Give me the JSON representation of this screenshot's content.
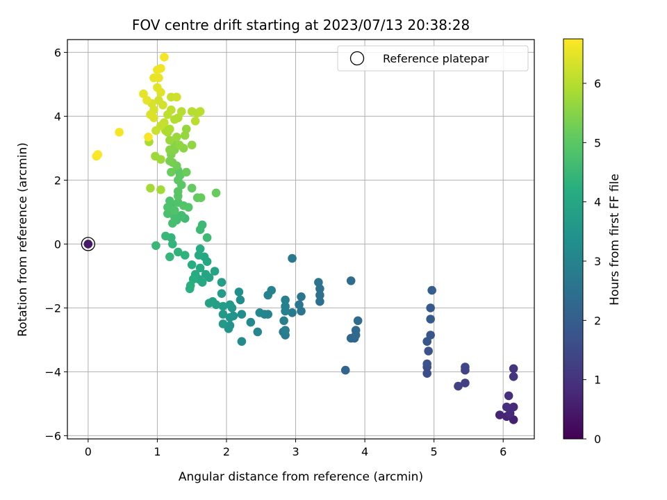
{
  "chart_data": {
    "type": "scatter",
    "title": "FOV centre drift starting at 2023/07/13 20:38:28",
    "xlabel": "Angular distance from reference (arcmin)",
    "ylabel": "Rotation from reference (arcmin)",
    "xlim": [
      -0.3,
      6.45
    ],
    "ylim": [
      -6.1,
      6.4
    ],
    "xticks": [
      0,
      1,
      2,
      3,
      4,
      5,
      6
    ],
    "yticks": [
      -6,
      -4,
      -2,
      0,
      2,
      4,
      6
    ],
    "xtick_labels": [
      "0",
      "1",
      "2",
      "3",
      "4",
      "5",
      "6"
    ],
    "ytick_labels": [
      "−6",
      "−4",
      "−2",
      "0",
      "2",
      "4",
      "6"
    ],
    "grid": true,
    "legend": {
      "position": "top-right",
      "label": "Reference platepar"
    },
    "reference_point": {
      "x": 0,
      "y": 0,
      "c": 0.5
    },
    "colorbar": {
      "label": "Hours from first FF file",
      "range": [
        0,
        6.75
      ],
      "ticks": [
        0,
        1,
        2,
        3,
        4,
        5,
        6
      ],
      "tick_labels": [
        "0",
        "1",
        "2",
        "3",
        "4",
        "5",
        "6"
      ],
      "colormap": "viridis"
    },
    "points": [
      {
        "x": 6.15,
        "y": -5.5,
        "c": 0.6
      },
      {
        "x": 6.05,
        "y": -5.4,
        "c": 0.7
      },
      {
        "x": 5.95,
        "y": -5.35,
        "c": 0.7
      },
      {
        "x": 6.1,
        "y": -5.3,
        "c": 0.8
      },
      {
        "x": 6.15,
        "y": -5.1,
        "c": 0.8
      },
      {
        "x": 6.05,
        "y": -5.1,
        "c": 0.9
      },
      {
        "x": 6.08,
        "y": -4.75,
        "c": 0.9
      },
      {
        "x": 6.15,
        "y": -4.15,
        "c": 1.0
      },
      {
        "x": 6.15,
        "y": -3.9,
        "c": 1.0
      },
      {
        "x": 5.45,
        "y": -4.35,
        "c": 1.3
      },
      {
        "x": 5.35,
        "y": -4.45,
        "c": 1.3
      },
      {
        "x": 5.45,
        "y": -3.95,
        "c": 1.35
      },
      {
        "x": 5.45,
        "y": -3.85,
        "c": 1.4
      },
      {
        "x": 4.9,
        "y": -4.05,
        "c": 1.6
      },
      {
        "x": 4.9,
        "y": -3.85,
        "c": 1.6
      },
      {
        "x": 4.9,
        "y": -3.75,
        "c": 1.7
      },
      {
        "x": 4.92,
        "y": -3.35,
        "c": 1.7
      },
      {
        "x": 4.9,
        "y": -3.05,
        "c": 1.8
      },
      {
        "x": 4.95,
        "y": -2.85,
        "c": 1.8
      },
      {
        "x": 4.95,
        "y": -2.35,
        "c": 1.9
      },
      {
        "x": 4.95,
        "y": -2.0,
        "c": 1.9
      },
      {
        "x": 4.97,
        "y": -1.45,
        "c": 2.0
      },
      {
        "x": 3.72,
        "y": -3.95,
        "c": 2.2
      },
      {
        "x": 3.85,
        "y": -2.95,
        "c": 2.2
      },
      {
        "x": 3.8,
        "y": -2.95,
        "c": 2.25
      },
      {
        "x": 3.87,
        "y": -2.85,
        "c": 2.3
      },
      {
        "x": 3.87,
        "y": -2.7,
        "c": 2.3
      },
      {
        "x": 3.9,
        "y": -2.4,
        "c": 2.35
      },
      {
        "x": 3.8,
        "y": -1.15,
        "c": 2.4
      },
      {
        "x": 3.35,
        "y": -1.8,
        "c": 2.45
      },
      {
        "x": 3.35,
        "y": -1.6,
        "c": 2.5
      },
      {
        "x": 3.35,
        "y": -1.4,
        "c": 2.5
      },
      {
        "x": 3.33,
        "y": -1.2,
        "c": 2.55
      },
      {
        "x": 3.08,
        "y": -2.1,
        "c": 2.6
      },
      {
        "x": 3.05,
        "y": -1.9,
        "c": 2.6
      },
      {
        "x": 3.08,
        "y": -1.65,
        "c": 2.65
      },
      {
        "x": 2.95,
        "y": -0.45,
        "c": 2.7
      },
      {
        "x": 2.95,
        "y": -2.15,
        "c": 2.75
      },
      {
        "x": 2.85,
        "y": -2.85,
        "c": 2.8
      },
      {
        "x": 2.82,
        "y": -2.75,
        "c": 2.8
      },
      {
        "x": 2.85,
        "y": -2.7,
        "c": 2.85
      },
      {
        "x": 2.83,
        "y": -2.4,
        "c": 2.85
      },
      {
        "x": 2.85,
        "y": -2.1,
        "c": 2.9
      },
      {
        "x": 2.85,
        "y": -1.95,
        "c": 2.9
      },
      {
        "x": 2.85,
        "y": -1.75,
        "c": 2.95
      },
      {
        "x": 2.65,
        "y": -1.45,
        "c": 3.0
      },
      {
        "x": 2.6,
        "y": -1.6,
        "c": 3.0
      },
      {
        "x": 2.6,
        "y": -2.2,
        "c": 3.05
      },
      {
        "x": 2.55,
        "y": -2.2,
        "c": 3.05
      },
      {
        "x": 2.48,
        "y": -2.15,
        "c": 3.1
      },
      {
        "x": 2.45,
        "y": -2.75,
        "c": 3.1
      },
      {
        "x": 2.35,
        "y": -2.45,
        "c": 3.15
      },
      {
        "x": 2.22,
        "y": -3.05,
        "c": 3.2
      },
      {
        "x": 2.22,
        "y": -2.2,
        "c": 3.25
      },
      {
        "x": 2.2,
        "y": -1.75,
        "c": 3.3
      },
      {
        "x": 2.18,
        "y": -1.5,
        "c": 3.35
      },
      {
        "x": 2.1,
        "y": -2.25,
        "c": 3.4
      },
      {
        "x": 2.05,
        "y": -2.55,
        "c": 3.45
      },
      {
        "x": 2.03,
        "y": -2.65,
        "c": 3.5
      },
      {
        "x": 2.05,
        "y": -2.3,
        "c": 3.5
      },
      {
        "x": 2.08,
        "y": -2.0,
        "c": 3.55
      },
      {
        "x": 2.05,
        "y": -1.9,
        "c": 3.6
      },
      {
        "x": 1.95,
        "y": -2.5,
        "c": 3.6
      },
      {
        "x": 1.95,
        "y": -2.2,
        "c": 3.65
      },
      {
        "x": 1.95,
        "y": -1.95,
        "c": 3.7
      },
      {
        "x": 1.93,
        "y": -1.55,
        "c": 3.7
      },
      {
        "x": 1.93,
        "y": -1.2,
        "c": 3.75
      },
      {
        "x": 1.85,
        "y": -1.9,
        "c": 3.8
      },
      {
        "x": 1.8,
        "y": -1.8,
        "c": 3.8
      },
      {
        "x": 1.75,
        "y": -1.85,
        "c": 3.85
      },
      {
        "x": 1.83,
        "y": -0.85,
        "c": 3.9
      },
      {
        "x": 1.75,
        "y": -1.05,
        "c": 3.9
      },
      {
        "x": 1.7,
        "y": -0.95,
        "c": 3.95
      },
      {
        "x": 1.72,
        "y": -0.55,
        "c": 4.0
      },
      {
        "x": 1.68,
        "y": -0.4,
        "c": 4.0
      },
      {
        "x": 1.65,
        "y": -1.2,
        "c": 4.05
      },
      {
        "x": 1.6,
        "y": -1.1,
        "c": 4.05
      },
      {
        "x": 1.62,
        "y": -0.75,
        "c": 4.1
      },
      {
        "x": 1.6,
        "y": -0.35,
        "c": 4.1
      },
      {
        "x": 1.62,
        "y": -0.15,
        "c": 4.15
      },
      {
        "x": 1.55,
        "y": -0.95,
        "c": 4.15
      },
      {
        "x": 1.52,
        "y": -1.1,
        "c": 4.2
      },
      {
        "x": 1.5,
        "y": -0.65,
        "c": 4.2
      },
      {
        "x": 1.47,
        "y": -1.4,
        "c": 4.25
      },
      {
        "x": 1.48,
        "y": -1.3,
        "c": 4.25
      },
      {
        "x": 1.4,
        "y": -0.35,
        "c": 4.3
      },
      {
        "x": 1.3,
        "y": -0.25,
        "c": 4.35
      },
      {
        "x": 1.22,
        "y": 0.0,
        "c": 4.4
      },
      {
        "x": 1.2,
        "y": 0.2,
        "c": 4.4
      },
      {
        "x": 1.18,
        "y": -0.4,
        "c": 4.45
      },
      {
        "x": 1.12,
        "y": 0.25,
        "c": 4.5
      },
      {
        "x": 0.98,
        "y": -0.05,
        "c": 4.5
      },
      {
        "x": 1.65,
        "y": 0.6,
        "c": 4.55
      },
      {
        "x": 1.62,
        "y": 0.45,
        "c": 4.55
      },
      {
        "x": 1.72,
        "y": 0.2,
        "c": 4.6
      },
      {
        "x": 1.4,
        "y": 0.8,
        "c": 4.6
      },
      {
        "x": 1.35,
        "y": 0.9,
        "c": 4.65
      },
      {
        "x": 1.28,
        "y": 0.75,
        "c": 4.65
      },
      {
        "x": 1.25,
        "y": 0.85,
        "c": 4.7
      },
      {
        "x": 1.22,
        "y": 0.65,
        "c": 4.7
      },
      {
        "x": 1.15,
        "y": 0.95,
        "c": 4.75
      },
      {
        "x": 1.2,
        "y": 1.2,
        "c": 4.75
      },
      {
        "x": 1.15,
        "y": 1.15,
        "c": 4.8
      },
      {
        "x": 1.18,
        "y": 1.35,
        "c": 4.8
      },
      {
        "x": 1.25,
        "y": 1.05,
        "c": 4.85
      },
      {
        "x": 1.3,
        "y": 1.3,
        "c": 4.85
      },
      {
        "x": 1.38,
        "y": 1.2,
        "c": 4.9
      },
      {
        "x": 1.45,
        "y": 1.15,
        "c": 4.9
      },
      {
        "x": 1.3,
        "y": 1.5,
        "c": 4.95
      },
      {
        "x": 1.3,
        "y": 1.65,
        "c": 4.95
      },
      {
        "x": 1.35,
        "y": 1.85,
        "c": 5.0
      },
      {
        "x": 1.3,
        "y": 2.0,
        "c": 5.0
      },
      {
        "x": 1.33,
        "y": 2.15,
        "c": 5.05
      },
      {
        "x": 1.3,
        "y": 2.3,
        "c": 5.05
      },
      {
        "x": 1.5,
        "y": 1.75,
        "c": 5.1
      },
      {
        "x": 1.58,
        "y": 1.45,
        "c": 5.1
      },
      {
        "x": 1.63,
        "y": 1.45,
        "c": 5.15
      },
      {
        "x": 1.85,
        "y": 1.6,
        "c": 5.15
      },
      {
        "x": 1.42,
        "y": 2.25,
        "c": 5.2
      },
      {
        "x": 1.2,
        "y": 2.25,
        "c": 5.2
      },
      {
        "x": 1.28,
        "y": 2.45,
        "c": 5.25
      },
      {
        "x": 1.22,
        "y": 2.55,
        "c": 5.3
      },
      {
        "x": 1.18,
        "y": 2.6,
        "c": 5.35
      },
      {
        "x": 1.2,
        "y": 2.8,
        "c": 5.4
      },
      {
        "x": 1.25,
        "y": 2.95,
        "c": 5.45
      },
      {
        "x": 1.18,
        "y": 2.95,
        "c": 5.5
      },
      {
        "x": 1.25,
        "y": 3.15,
        "c": 5.5
      },
      {
        "x": 1.38,
        "y": 3.0,
        "c": 5.55
      },
      {
        "x": 1.32,
        "y": 3.1,
        "c": 5.6
      },
      {
        "x": 1.5,
        "y": 3.1,
        "c": 5.6
      },
      {
        "x": 1.4,
        "y": 3.4,
        "c": 5.65
      },
      {
        "x": 1.42,
        "y": 3.6,
        "c": 5.65
      },
      {
        "x": 1.28,
        "y": 3.35,
        "c": 5.7
      },
      {
        "x": 1.18,
        "y": 3.25,
        "c": 5.7
      },
      {
        "x": 1.05,
        "y": 2.65,
        "c": 5.75
      },
      {
        "x": 0.97,
        "y": 2.75,
        "c": 5.75
      },
      {
        "x": 0.9,
        "y": 1.75,
        "c": 5.8
      },
      {
        "x": 1.05,
        "y": 1.7,
        "c": 5.8
      },
      {
        "x": 0.88,
        "y": 3.2,
        "c": 5.85
      },
      {
        "x": 1.15,
        "y": 3.5,
        "c": 5.85
      },
      {
        "x": 1.18,
        "y": 3.6,
        "c": 5.9
      },
      {
        "x": 1.12,
        "y": 3.55,
        "c": 5.9
      },
      {
        "x": 1.25,
        "y": 3.9,
        "c": 5.95
      },
      {
        "x": 1.3,
        "y": 3.95,
        "c": 5.95
      },
      {
        "x": 1.35,
        "y": 4.15,
        "c": 6.0
      },
      {
        "x": 1.5,
        "y": 4.15,
        "c": 6.0
      },
      {
        "x": 1.58,
        "y": 4.1,
        "c": 6.0
      },
      {
        "x": 1.55,
        "y": 3.85,
        "c": 6.05
      },
      {
        "x": 1.62,
        "y": 4.15,
        "c": 6.05
      },
      {
        "x": 1.15,
        "y": 4.05,
        "c": 6.1
      },
      {
        "x": 1.2,
        "y": 4.2,
        "c": 6.1
      },
      {
        "x": 1.1,
        "y": 3.8,
        "c": 6.15
      },
      {
        "x": 1.05,
        "y": 3.7,
        "c": 6.15
      },
      {
        "x": 0.98,
        "y": 3.55,
        "c": 6.2
      },
      {
        "x": 1.2,
        "y": 4.6,
        "c": 6.2
      },
      {
        "x": 1.28,
        "y": 4.6,
        "c": 6.25
      },
      {
        "x": 1.08,
        "y": 4.35,
        "c": 6.3
      },
      {
        "x": 1.02,
        "y": 4.5,
        "c": 6.3
      },
      {
        "x": 0.92,
        "y": 4.4,
        "c": 6.35
      },
      {
        "x": 0.95,
        "y": 4.2,
        "c": 6.35
      },
      {
        "x": 0.9,
        "y": 4.05,
        "c": 6.4
      },
      {
        "x": 0.95,
        "y": 3.95,
        "c": 6.4
      },
      {
        "x": 1.05,
        "y": 4.75,
        "c": 6.45
      },
      {
        "x": 1.0,
        "y": 4.9,
        "c": 6.45
      },
      {
        "x": 0.85,
        "y": 4.5,
        "c": 6.5
      },
      {
        "x": 0.8,
        "y": 4.7,
        "c": 6.5
      },
      {
        "x": 0.95,
        "y": 5.2,
        "c": 6.55
      },
      {
        "x": 1.02,
        "y": 5.2,
        "c": 6.55
      },
      {
        "x": 1.0,
        "y": 5.45,
        "c": 6.6
      },
      {
        "x": 1.05,
        "y": 5.5,
        "c": 6.6
      },
      {
        "x": 1.1,
        "y": 5.85,
        "c": 6.65
      },
      {
        "x": 0.45,
        "y": 3.5,
        "c": 6.65
      },
      {
        "x": 0.87,
        "y": 3.35,
        "c": 6.7
      },
      {
        "x": 0.12,
        "y": 2.75,
        "c": 6.7
      },
      {
        "x": 0.14,
        "y": 2.8,
        "c": 6.72
      }
    ]
  }
}
